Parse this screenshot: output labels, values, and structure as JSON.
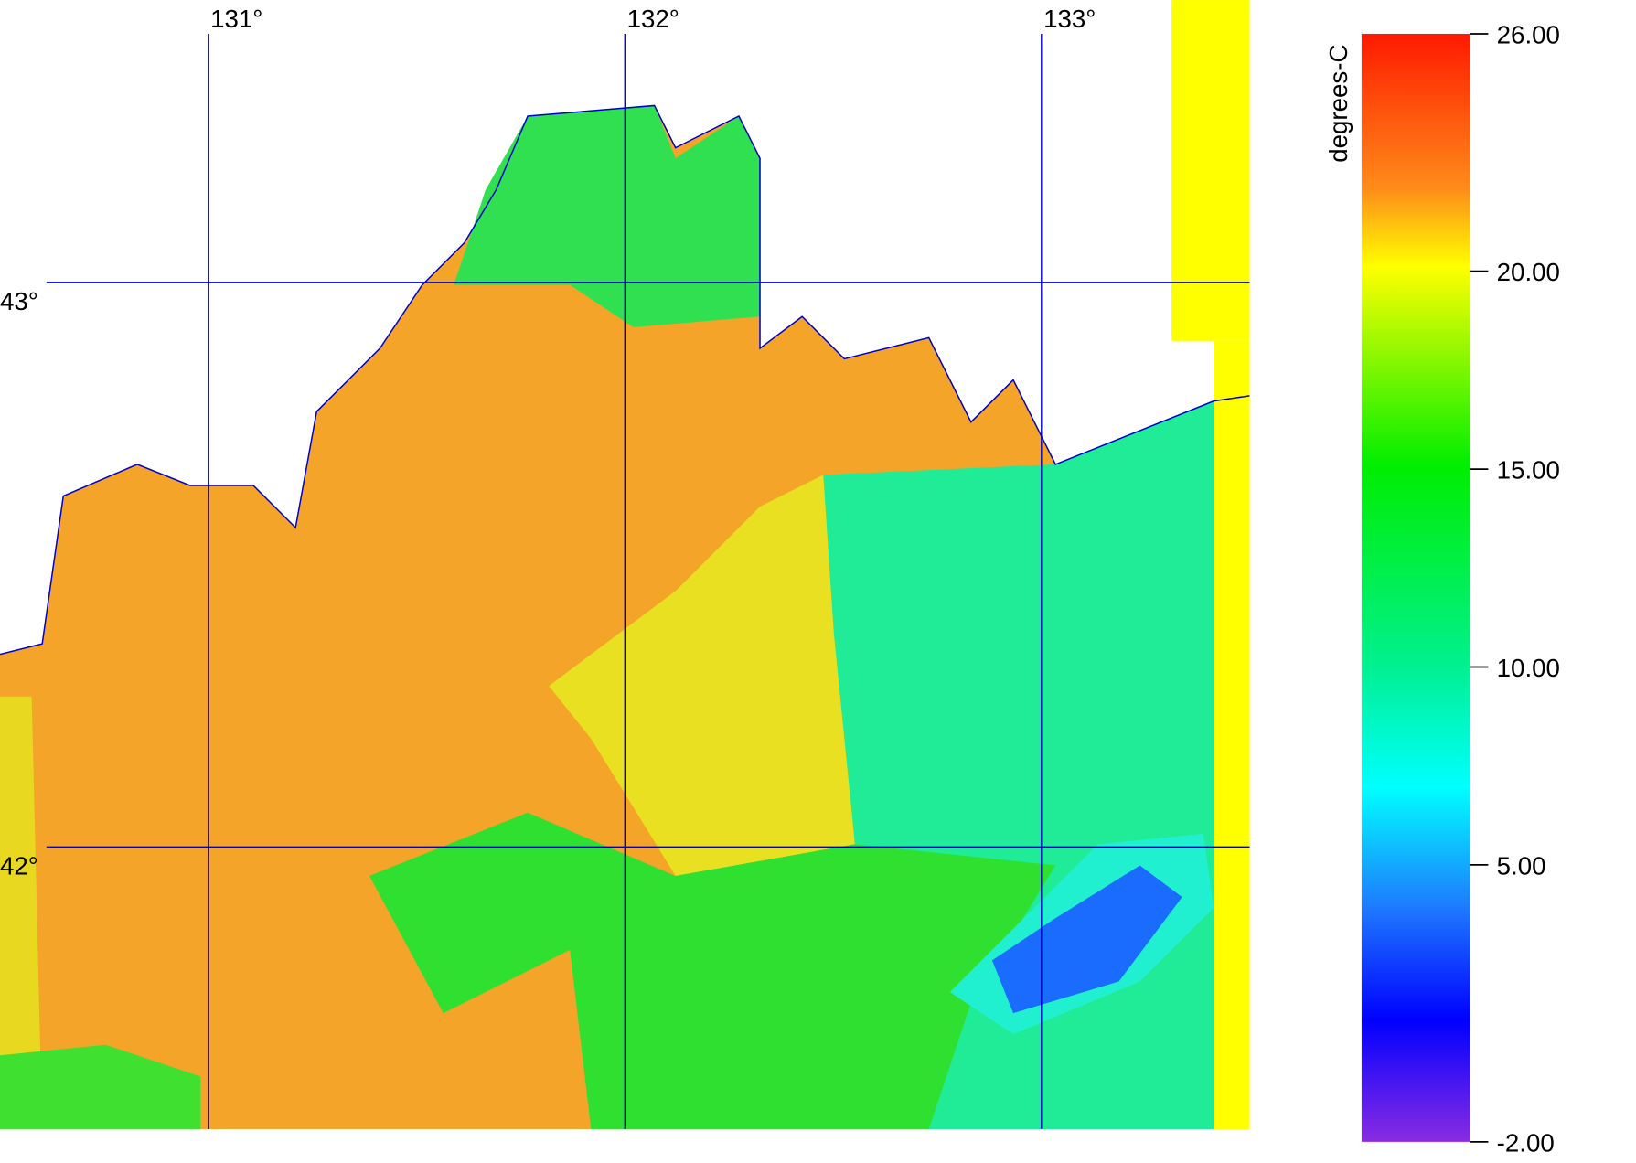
{
  "map": {
    "lon_range": [
      130.5,
      133.5
    ],
    "lat_range": [
      41.5,
      43.5
    ],
    "lon_ticks": [
      {
        "value": 131,
        "label": "131°"
      },
      {
        "value": 132,
        "label": "132°"
      },
      {
        "value": 133,
        "label": "133°"
      }
    ],
    "lat_ticks": [
      {
        "value": 43,
        "label": "43°"
      },
      {
        "value": 42,
        "label": "42°"
      }
    ],
    "colorbar": {
      "label": "degrees-C",
      "range": [
        -2,
        26
      ],
      "ticks": [
        {
          "value": 26,
          "label": "26.00"
        },
        {
          "value": 20,
          "label": "20.00"
        },
        {
          "value": 15,
          "label": "15.00"
        },
        {
          "value": 10,
          "label": "10.00"
        },
        {
          "value": 5,
          "label": "5.00"
        },
        {
          "value": -2,
          "label": "-2.00"
        }
      ]
    }
  }
}
